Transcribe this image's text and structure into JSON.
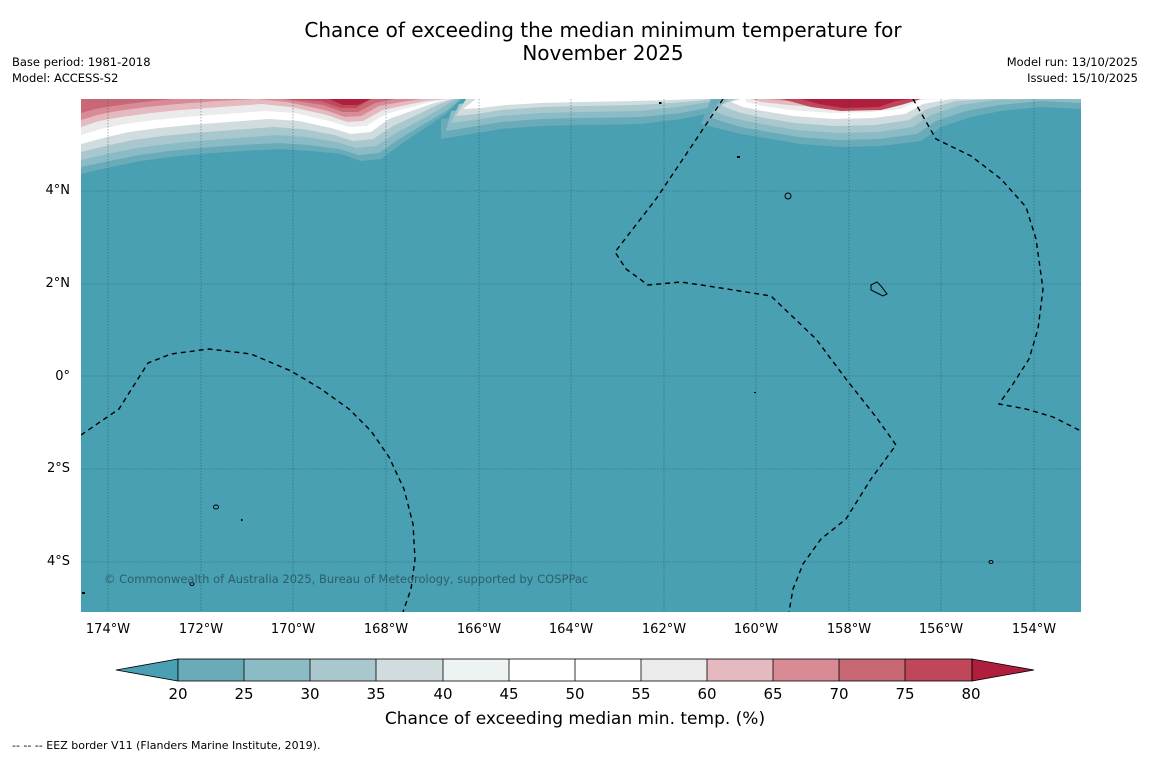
{
  "header": {
    "title_line1": "Chance of exceeding the median minimum temperature for",
    "title_line2": "November 2025",
    "base_period": "Base period: 1981-2018",
    "model": "Model: ACCESS-S2",
    "model_run": "Model run: 13/10/2025",
    "issued": "Issued: 15/10/2025"
  },
  "map": {
    "latitude_labels": [
      "4°N",
      "2°N",
      "0°",
      "2°S",
      "4°S"
    ],
    "longitude_labels": [
      "174°W",
      "172°W",
      "170°W",
      "168°W",
      "166°W",
      "164°W",
      "162°W",
      "160°W",
      "158°W",
      "156°W",
      "154°W"
    ],
    "copyright": "© Commonwealth of Australia 2025, Bureau of Meteorology, supported by COSPPac",
    "ocean_color": "#48a0b2"
  },
  "colorbar": {
    "ticks": [
      "20",
      "25",
      "30",
      "35",
      "40",
      "45",
      "50",
      "55",
      "60",
      "65",
      "70",
      "75",
      "80"
    ],
    "colors": [
      "#48a0b2",
      "#6aabba",
      "#8bbcc6",
      "#a9c8ce",
      "#d1dcde",
      "#edf2f3",
      "#ffffff",
      "#ffffff",
      "#ebebeb",
      "#e4b9bf",
      "#d88a95",
      "#c96875",
      "#c0465a",
      "#b01e3d"
    ],
    "label": "Chance of exceeding median min. temp. (%)"
  },
  "footer": {
    "eez_legend": "--  --  -- EEZ border V11 (Flanders Marine Institute, 2019)."
  }
}
